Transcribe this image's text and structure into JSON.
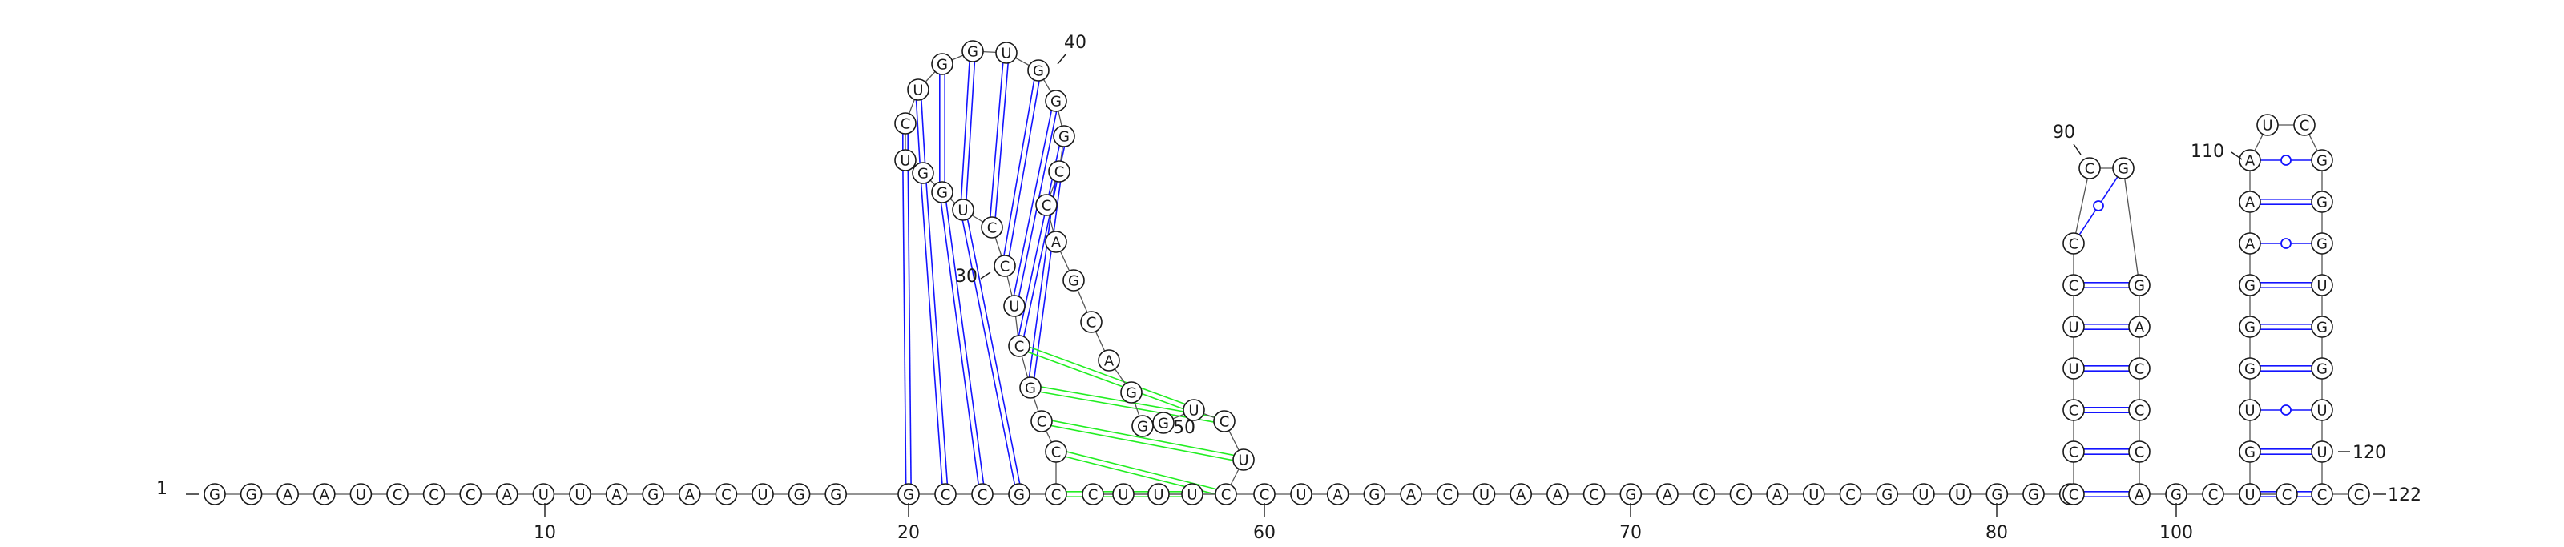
{
  "diagram": {
    "sequence": "GGAAUCCCAUUAGACUGGGCCGCCCGCUCCUGGUCUGGUGGGCCAGCAGGGUCUCUUUCCUAGACUAACGACCAUCGUUGGGCCCUUCCCGGACCCAGCCCUGUGGGAAAUCGGGUGGUUCC",
    "sequence_length": 122,
    "colors": {
      "canonical": "#1414ff",
      "wobble": "#1414ff",
      "pseudoknot": "#22ee22",
      "backbone": "#555555",
      "outline": "#1a1a1a"
    },
    "pairs": [
      {
        "i": 19,
        "j": 34,
        "type": "canonical"
      },
      {
        "i": 20,
        "j": 33,
        "type": "canonical"
      },
      {
        "i": 21,
        "j": 32,
        "type": "canonical"
      },
      {
        "i": 22,
        "j": 31,
        "type": "canonical"
      },
      {
        "i": 26,
        "j": 43,
        "type": "canonical"
      },
      {
        "i": 27,
        "j": 42,
        "type": "canonical"
      },
      {
        "i": 28,
        "j": 41,
        "type": "canonical"
      },
      {
        "i": 29,
        "j": 40,
        "type": "canonical"
      },
      {
        "i": 30,
        "j": 39,
        "type": "canonical"
      },
      {
        "i": 31,
        "j": 38,
        "type": "canonical"
      },
      {
        "i": 32,
        "j": 37,
        "type": "canonical"
      },
      {
        "i": 33,
        "j": 36,
        "type": "canonical"
      },
      {
        "i": 34,
        "j": 35,
        "type": "canonical"
      },
      {
        "i": 83,
        "j": 97,
        "type": "canonical"
      },
      {
        "i": 84,
        "j": 96,
        "type": "canonical"
      },
      {
        "i": 85,
        "j": 95,
        "type": "canonical"
      },
      {
        "i": 86,
        "j": 94,
        "type": "canonical"
      },
      {
        "i": 87,
        "j": 93,
        "type": "canonical"
      },
      {
        "i": 88,
        "j": 92,
        "type": "canonical"
      },
      {
        "i": 89,
        "j": 91,
        "type": "wobble"
      },
      {
        "i": 102,
        "j": 121,
        "type": "canonical"
      },
      {
        "i": 103,
        "j": 120,
        "type": "canonical"
      },
      {
        "i": 104,
        "j": 119,
        "type": "wobble"
      },
      {
        "i": 105,
        "j": 118,
        "type": "canonical"
      },
      {
        "i": 106,
        "j": 117,
        "type": "canonical"
      },
      {
        "i": 107,
        "j": 116,
        "type": "canonical"
      },
      {
        "i": 108,
        "j": 115,
        "type": "wobble"
      },
      {
        "i": 109,
        "j": 114,
        "type": "canonical"
      },
      {
        "i": 110,
        "j": 113,
        "type": "wobble"
      },
      {
        "i": 23,
        "j": 56,
        "type": "pseudoknot"
      },
      {
        "i": 24,
        "j": 55,
        "type": "pseudoknot"
      },
      {
        "i": 25,
        "j": 54,
        "type": "pseudoknot"
      },
      {
        "i": 26,
        "j": 53,
        "type": "pseudoknot"
      },
      {
        "i": 27,
        "j": 52,
        "type": "pseudoknot"
      }
    ],
    "labels": {
      "n1": "1",
      "n10": "10",
      "n20": "20",
      "n30": "30",
      "n40": "40",
      "n50": "50",
      "n60": "60",
      "n70": "70",
      "n80": "80",
      "n90": "90",
      "n100": "100",
      "n110": "110",
      "n120": "120",
      "n122": "122"
    }
  }
}
